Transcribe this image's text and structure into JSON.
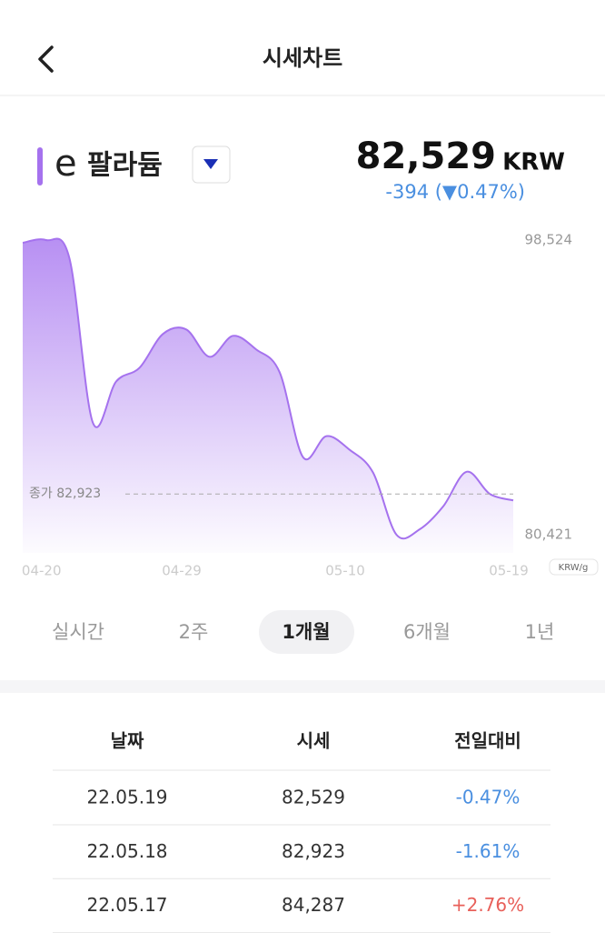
{
  "header": {
    "title": "시세차트"
  },
  "asset": {
    "prefix": "e",
    "name": "팔라듐",
    "price": "82,529",
    "unit": "KRW",
    "change": "-394 (▼0.47%)"
  },
  "chart_data": {
    "type": "area",
    "categories": [
      null,
      "04-20",
      null,
      null,
      null,
      null,
      null,
      "04-29",
      null,
      null,
      null,
      null,
      null,
      null,
      "05-10",
      null,
      null,
      null,
      null,
      null,
      null,
      "05-19"
    ],
    "values": [
      98357,
      98524,
      97404,
      87315,
      89837,
      90678,
      92752,
      93032,
      91351,
      92640,
      91799,
      90398,
      85185,
      86474,
      85634,
      84232,
      80421,
      80757,
      82159,
      84287,
      82923,
      82529
    ],
    "color": "#a572ee",
    "ylim": [
      80421,
      98524
    ],
    "yticks": [
      {
        "value": 98524,
        "label": "98,524"
      },
      {
        "value": 80421,
        "label": "80,421"
      }
    ],
    "reference": {
      "value": 82923,
      "label": "종가 82,923"
    },
    "unit": "KRW/g"
  },
  "tabs": {
    "items": [
      "실시간",
      "2주",
      "1개월",
      "6개월",
      "1년"
    ],
    "selected": 2
  },
  "table": {
    "header": [
      "날짜",
      "시세",
      "전일대비"
    ],
    "rows": [
      [
        "22.05.19",
        "82,529",
        "-0.47%"
      ],
      [
        "22.05.18",
        "82,923",
        "-1.61%"
      ],
      [
        "22.05.17",
        "84,287",
        "+2.76%"
      ]
    ]
  }
}
